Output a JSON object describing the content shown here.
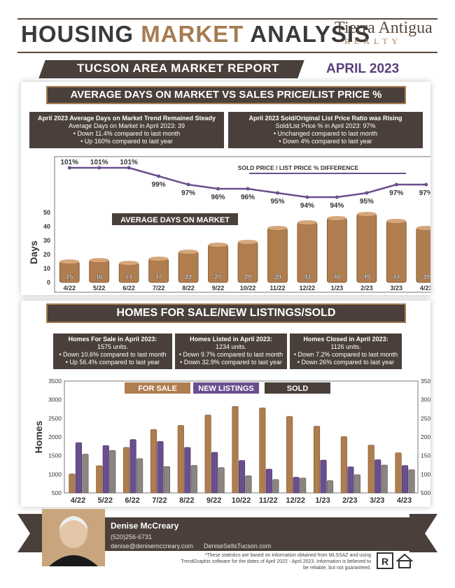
{
  "header": {
    "title_part1": "HOUSING ",
    "title_part2": "MARKET",
    "title_part3": " ANALYSIS",
    "brand_line1": "Tierra Antigua",
    "brand_line2": "REALTY",
    "report_name": "TUCSON AREA MARKET REPORT",
    "month": "APRIL 2023"
  },
  "section1": {
    "banner": "AVERAGE DAYS ON MARKET VS SALES PRICE/LIST PRICE %",
    "info_left": {
      "heading": "April 2023 Average Days on Market Trend Remained Steady",
      "sub": "Average Days on Market in April 2023: 39",
      "bullets": [
        "• Down 11.4% compared to last month",
        "• Up 160% compared to last year"
      ]
    },
    "info_right": {
      "heading": "April 2023 Sold/Original List Price Ratio was Rising",
      "sub": "Sold/List Price % in April 2023: 97%",
      "bullets": [
        "• Unchanged compared to last month",
        "• Down 4% compared to last year"
      ]
    }
  },
  "section2": {
    "banner": "HOMES FOR SALE/NEW LISTINGS/SOLD",
    "info": [
      {
        "heading": "Homes For Sale in April 2023:",
        "sub": "1575 units.",
        "bullets": [
          "• Down 10.6% compared to last month",
          "• Up 56.4% compared to last year"
        ]
      },
      {
        "heading": "Homes Listed in April 2023:",
        "sub": "1234 units.",
        "bullets": [
          "• Down 9.7% compared to last month",
          "• Down 32.9% compared to last year"
        ]
      },
      {
        "heading": "Homes Closed in April 2023:",
        "sub": "1126 units.",
        "bullets": [
          "• Down 7.2% compared to last month",
          "• Down 26% compared to last year"
        ]
      }
    ]
  },
  "footer": {
    "name": "Denise McCreary",
    "phone": "(520)256-6731",
    "contact": "denise@denisemccreary.com      DeniseSellsTucson.com",
    "disclaimer": "*These statistics are based on information obtained from MLSSAZ and using TrendGraphix software for the dates of April 2022 - April 2023. Information is believed to be reliable, but not guaranteed."
  },
  "colors": {
    "dark": "#4a3f3a",
    "bronze": "#b07d4f",
    "purple": "#6a4f8f",
    "gray": "#8a8580"
  },
  "chart_data": [
    {
      "type": "line",
      "legend": "SOLD PRICE / LIST PRICE % DIFFERENCE",
      "categories": [
        "4/22",
        "5/22",
        "6/22",
        "7/22",
        "8/22",
        "9/22",
        "10/22",
        "11/22",
        "12/22",
        "1/23",
        "2/23",
        "3/23",
        "4/23"
      ],
      "values": [
        101,
        101,
        101,
        99,
        97,
        96,
        96,
        95,
        94,
        94,
        95,
        97,
        97
      ],
      "labels": [
        "101%",
        "101%",
        "101%",
        "99%",
        "97%",
        "96%",
        "96%",
        "95%",
        "94%",
        "94%",
        "95%",
        "97%",
        "97%"
      ]
    },
    {
      "type": "bar",
      "title": "AVERAGE DAYS ON MARKET",
      "ylabel": "Days",
      "ylim": [
        0,
        50
      ],
      "yticks": [
        "0",
        "10",
        "20",
        "30",
        "40",
        "50"
      ],
      "categories": [
        "4/22",
        "5/22",
        "6/22",
        "7/22",
        "8/22",
        "9/22",
        "10/22",
        "11/22",
        "12/22",
        "1/23",
        "2/23",
        "3/23",
        "4/23"
      ],
      "values": [
        15,
        16,
        14,
        17,
        22,
        27,
        29,
        39,
        43,
        46,
        49,
        44,
        39
      ]
    },
    {
      "type": "bar",
      "ylabel": "Homes",
      "ylim": [
        500,
        3500
      ],
      "yticks": [
        "500",
        "1000",
        "1500",
        "2000",
        "2500",
        "3000",
        "3500"
      ],
      "categories": [
        "4/22",
        "5/22",
        "6/22",
        "7/22",
        "8/22",
        "9/22",
        "10/22",
        "11/22",
        "12/22",
        "1/23",
        "2/23",
        "3/23",
        "4/23"
      ],
      "series": [
        {
          "name": "FOR SALE",
          "values": [
            1010,
            1230,
            1720,
            2200,
            2310,
            2590,
            2820,
            2780,
            2550,
            2290,
            2010,
            1780,
            1575
          ]
        },
        {
          "name": "NEW LISTINGS",
          "values": [
            1850,
            1770,
            1930,
            1880,
            1720,
            1590,
            1370,
            1140,
            920,
            1380,
            1200,
            1390,
            1234
          ]
        },
        {
          "name": "SOLD",
          "values": [
            1540,
            1640,
            1420,
            1210,
            1240,
            1180,
            960,
            860,
            900,
            830,
            990,
            1250,
            1126
          ]
        }
      ]
    }
  ]
}
